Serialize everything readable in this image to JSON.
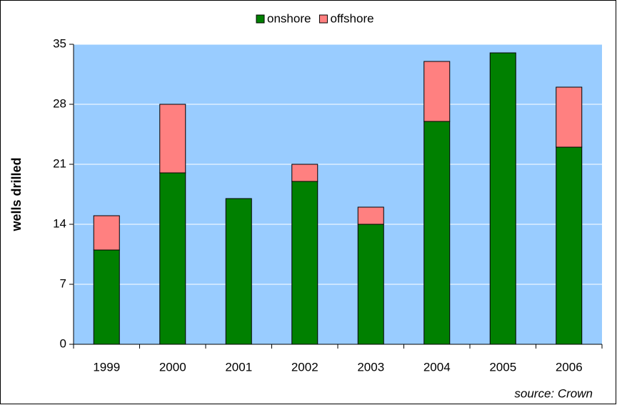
{
  "chart_data": {
    "type": "stacked_bar",
    "categories": [
      "1999",
      "2000",
      "2001",
      "2002",
      "2003",
      "2004",
      "2005",
      "2006"
    ],
    "series": [
      {
        "name": "onshore",
        "color": "#008000",
        "values": [
          11,
          20,
          17,
          19,
          14,
          26,
          34,
          23
        ]
      },
      {
        "name": "offshore",
        "color": "#ff8080",
        "values": [
          4,
          8,
          0,
          2,
          2,
          7,
          0,
          7
        ]
      }
    ],
    "y_label": "wells drilled",
    "source": "source: Crown",
    "ylim": [
      0,
      35
    ],
    "yticks": [
      0,
      7,
      14,
      21,
      28,
      35
    ],
    "grid": true,
    "legend": "top",
    "plot_background": "#99ccff"
  }
}
